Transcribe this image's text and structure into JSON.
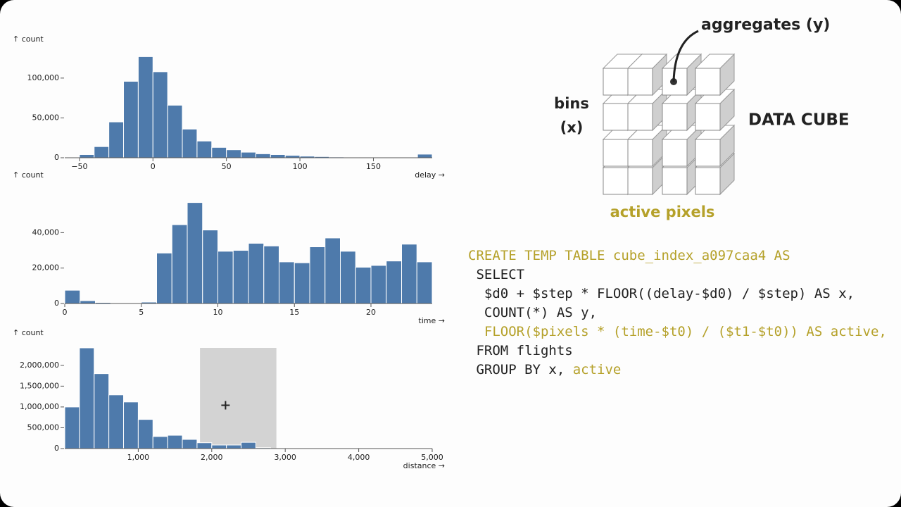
{
  "chart_data": [
    {
      "type": "histogram",
      "y_label": "↑ count",
      "x_label": "delay →",
      "color": "#4e7aab",
      "bins": [
        -50,
        -40,
        -30,
        -20,
        -10,
        0,
        10,
        20,
        30,
        40,
        50,
        60,
        70,
        80,
        90,
        100,
        110,
        120,
        130,
        140,
        150,
        160,
        170,
        180,
        190
      ],
      "values": [
        4000,
        14000,
        45000,
        96000,
        127000,
        108000,
        66000,
        36000,
        21000,
        13000,
        10000,
        7000,
        5000,
        4000,
        3000,
        2000,
        1500,
        1000,
        500,
        0,
        0,
        0,
        0,
        4500
      ],
      "xlim": [
        -60,
        190
      ],
      "ylim": [
        0,
        130000
      ],
      "xticks": [
        {
          "value": -50,
          "label": "−50"
        },
        0,
        50,
        100,
        150
      ],
      "yticks": [
        0,
        {
          "value": 50000,
          "label": "50,000"
        },
        {
          "value": 100000,
          "label": "100,000"
        }
      ]
    },
    {
      "type": "histogram",
      "y_label": "↑ count",
      "x_label": "time →",
      "color": "#4e7aab",
      "bins": [
        0,
        1,
        2,
        3,
        4,
        5,
        6,
        7,
        8,
        9,
        10,
        11,
        12,
        13,
        14,
        15,
        16,
        17,
        18,
        19,
        20,
        21,
        22,
        23,
        24
      ],
      "values": [
        7500,
        1600,
        600,
        0,
        0,
        800,
        28500,
        44500,
        57000,
        41500,
        29500,
        30000,
        34000,
        32500,
        23500,
        23000,
        32000,
        37000,
        29500,
        20500,
        21500,
        24000,
        33500,
        23500
      ],
      "xlim": [
        0,
        24
      ],
      "ylim": [
        0,
        64000
      ],
      "xticks": [
        0,
        5,
        10,
        15,
        20
      ],
      "yticks": [
        0,
        {
          "value": 20000,
          "label": "20,000"
        },
        {
          "value": 40000,
          "label": "40,000"
        }
      ]
    },
    {
      "type": "histogram",
      "y_label": "↑ count",
      "x_label": "distance →",
      "color": "#4e7aab",
      "bins": [
        0,
        200,
        400,
        600,
        800,
        1000,
        1200,
        1400,
        1600,
        1800,
        2000,
        2200,
        2400,
        2600,
        2800
      ],
      "values": [
        1000000,
        2420000,
        1800000,
        1290000,
        1120000,
        700000,
        290000,
        320000,
        220000,
        140000,
        85000,
        85000,
        150000,
        20000
      ],
      "selection": [
        1840,
        2880
      ],
      "xlim": [
        0,
        5000
      ],
      "ylim": [
        0,
        2420000
      ],
      "xticks": [
        {
          "value": 1000,
          "label": "1,000"
        },
        {
          "value": 2000,
          "label": "2,000"
        },
        {
          "value": 3000,
          "label": "3,000"
        },
        {
          "value": 4000,
          "label": "4,000"
        },
        {
          "value": 5000,
          "label": "5,000"
        }
      ],
      "yticks": [
        0,
        {
          "value": 500000,
          "label": "500,000"
        },
        {
          "value": 1000000,
          "label": "1,000,000"
        },
        {
          "value": 1500000,
          "label": "1,500,000"
        },
        {
          "value": 2000000,
          "label": "2,000,000"
        }
      ]
    }
  ],
  "diagram": {
    "aggregates_label": "aggregates (y)",
    "bins_label": "bins",
    "bins_axis": "(x)",
    "title": "DATA CUBE",
    "pixels_label": "active pixels"
  },
  "code": {
    "lines": [
      [
        {
          "text": "CREATE TEMP TABLE cube_index_a097caa4 AS",
          "highlight": true
        }
      ],
      [
        {
          "text": "SELECT",
          "highlight": false
        }
      ],
      [
        {
          "text": "$d0 + $step * FLOOR((delay-$d0) / $step) AS x,",
          "highlight": false
        }
      ],
      [
        {
          "text": "COUNT(*) AS y,",
          "highlight": false
        }
      ],
      [
        {
          "text": "FLOOR($pixels * (time-$t0) / ($t1-$t0)) AS active,",
          "highlight": true
        }
      ],
      [
        {
          "text": "FROM flights",
          "highlight": false
        }
      ],
      [
        {
          "text": "GROUP BY x, ",
          "highlight": false
        },
        {
          "text": "active",
          "highlight": true
        }
      ]
    ]
  }
}
